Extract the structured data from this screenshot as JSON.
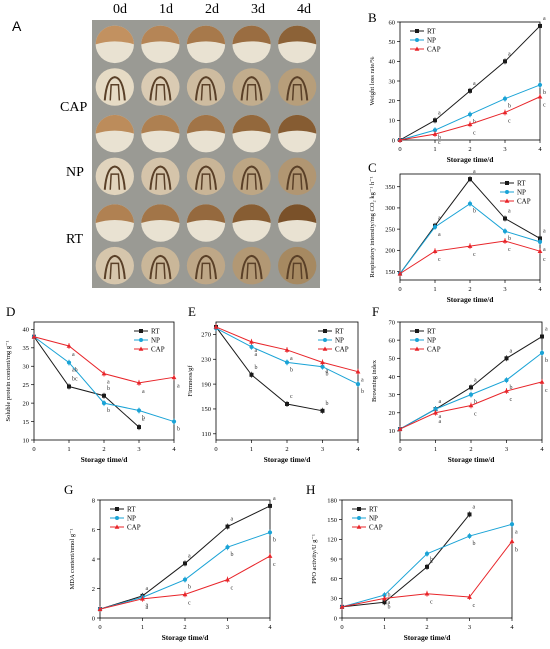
{
  "panel_a": {
    "letter": "A",
    "days": [
      "0d",
      "1d",
      "2d",
      "3d",
      "4d"
    ],
    "rows": [
      "CAP",
      "NP",
      "RT"
    ]
  },
  "colors": {
    "RT": "#1a1a1a",
    "NP": "#1aa3d6",
    "CAP": "#e8252a"
  },
  "chart_data": [
    {
      "id": "B",
      "type": "line",
      "letter": "B",
      "xlabel": "Storage time/d",
      "ylabel": "Weight loss rate/%",
      "x": [
        0,
        1,
        2,
        3,
        4
      ],
      "xlim": [
        0,
        4
      ],
      "ylim": [
        0,
        60
      ],
      "yticks": [
        0,
        10,
        20,
        30,
        40,
        50,
        60
      ],
      "legend_pos": "top-left",
      "series": [
        {
          "name": "RT",
          "color": "#1a1a1a",
          "marker": "square",
          "values": [
            0,
            10,
            25,
            40,
            58
          ],
          "labels": [
            "",
            "a",
            "a",
            "a",
            "a"
          ]
        },
        {
          "name": "NP",
          "color": "#1aa3d6",
          "marker": "circle",
          "values": [
            0,
            5,
            13,
            21,
            28
          ],
          "labels": [
            "",
            "b",
            "b",
            "b",
            "b"
          ]
        },
        {
          "name": "CAP",
          "color": "#e8252a",
          "marker": "triangle",
          "values": [
            0,
            3,
            8,
            14,
            22
          ],
          "labels": [
            "",
            "c",
            "c",
            "c",
            "c"
          ]
        }
      ]
    },
    {
      "id": "C",
      "type": "line",
      "letter": "C",
      "xlabel": "Storage time/d",
      "ylabel": "Respiratory intensity/mg CO₂ kg⁻¹ h⁻¹",
      "x": [
        0,
        1,
        2,
        3,
        4
      ],
      "xlim": [
        0,
        4
      ],
      "ylim": [
        130,
        380
      ],
      "yticks": [
        150,
        200,
        250,
        300,
        350
      ],
      "legend_pos": "top-right",
      "series": [
        {
          "name": "RT",
          "color": "#1a1a1a",
          "marker": "square",
          "values": [
            145,
            258,
            368,
            275,
            228
          ],
          "labels": [
            "",
            "a",
            "a",
            "a",
            "a"
          ]
        },
        {
          "name": "NP",
          "color": "#1aa3d6",
          "marker": "circle",
          "values": [
            145,
            255,
            310,
            245,
            220
          ],
          "labels": [
            "",
            "a",
            "b",
            "b",
            "a"
          ]
        },
        {
          "name": "CAP",
          "color": "#e8252a",
          "marker": "triangle",
          "values": [
            145,
            198,
            210,
            222,
            198
          ],
          "labels": [
            "",
            "c",
            "c",
            "c",
            "c"
          ]
        }
      ]
    },
    {
      "id": "D",
      "type": "line",
      "letter": "D",
      "xlabel": "Storage time/d",
      "ylabel": "Soluble protein content/mg g⁻¹",
      "x": [
        0,
        1,
        2,
        3,
        4
      ],
      "xlim": [
        0,
        4
      ],
      "ylim": [
        10,
        42
      ],
      "yticks": [
        10,
        15,
        20,
        25,
        30,
        35,
        40
      ],
      "legend_pos": "top-right",
      "series": [
        {
          "name": "RT",
          "color": "#1a1a1a",
          "marker": "square",
          "values": [
            38,
            24.5,
            22,
            13.5,
            null
          ],
          "labels": [
            "",
            "bc",
            "b",
            "c",
            ""
          ]
        },
        {
          "name": "NP",
          "color": "#1aa3d6",
          "marker": "circle",
          "values": [
            38,
            31,
            20,
            18,
            15
          ],
          "labels": [
            "",
            "ab",
            "b",
            "b",
            "b"
          ]
        },
        {
          "name": "CAP",
          "color": "#e8252a",
          "marker": "triangle",
          "values": [
            38,
            35.5,
            28,
            25.5,
            27
          ],
          "labels": [
            "",
            "a",
            "a",
            "a",
            "a"
          ]
        }
      ]
    },
    {
      "id": "E",
      "type": "line",
      "letter": "E",
      "xlabel": "Storage time/d",
      "ylabel": "Firmness/gf",
      "x": [
        0,
        1,
        2,
        3,
        4
      ],
      "xlim": [
        0,
        4
      ],
      "ylim": [
        100,
        290
      ],
      "yticks": [
        110,
        150,
        190,
        230,
        270
      ],
      "legend_pos": "top-right",
      "series": [
        {
          "name": "RT",
          "color": "#1a1a1a",
          "marker": "square",
          "values": [
            282,
            205,
            158,
            147,
            null
          ],
          "labels": [
            "",
            "b",
            "c",
            "b",
            ""
          ]
        },
        {
          "name": "NP",
          "color": "#1aa3d6",
          "marker": "circle",
          "values": [
            280,
            250,
            225,
            218,
            190
          ],
          "labels": [
            "",
            "a",
            "b",
            "b",
            "b"
          ]
        },
        {
          "name": "CAP",
          "color": "#e8252a",
          "marker": "triangle",
          "values": [
            282,
            258,
            245,
            225,
            210
          ],
          "labels": [
            "",
            "a",
            "a",
            "a",
            "a"
          ]
        }
      ]
    },
    {
      "id": "F",
      "type": "line",
      "letter": "F",
      "xlabel": "Storage time/d",
      "ylabel": "Browning index",
      "x": [
        0,
        1,
        2,
        3,
        4
      ],
      "xlim": [
        0,
        4
      ],
      "ylim": [
        5,
        70
      ],
      "yticks": [
        10,
        20,
        30,
        40,
        50,
        60,
        70
      ],
      "legend_pos": "top-left",
      "series": [
        {
          "name": "RT",
          "color": "#1a1a1a",
          "marker": "square",
          "values": [
            11,
            22,
            34,
            50,
            62
          ],
          "labels": [
            "",
            "a",
            "a",
            "a",
            "a"
          ]
        },
        {
          "name": "NP",
          "color": "#1aa3d6",
          "marker": "circle",
          "values": [
            11,
            22,
            30,
            38,
            53
          ],
          "labels": [
            "",
            "a",
            "b",
            "b",
            "b"
          ]
        },
        {
          "name": "CAP",
          "color": "#e8252a",
          "marker": "triangle",
          "values": [
            11,
            20,
            24,
            32,
            37
          ],
          "labels": [
            "",
            "a",
            "c",
            "c",
            "c"
          ]
        }
      ]
    },
    {
      "id": "G",
      "type": "line",
      "letter": "G",
      "xlabel": "Storage time/d",
      "ylabel": "MDA content/nmol g⁻¹",
      "x": [
        0,
        1,
        2,
        3,
        4
      ],
      "xlim": [
        0,
        4
      ],
      "ylim": [
        0,
        8
      ],
      "yticks": [
        0,
        2,
        4,
        6,
        8
      ],
      "legend_pos": "top-left",
      "series": [
        {
          "name": "RT",
          "color": "#1a1a1a",
          "marker": "square",
          "values": [
            0.6,
            1.5,
            3.7,
            6.2,
            7.6
          ],
          "labels": [
            "",
            "a",
            "a",
            "a",
            "a"
          ]
        },
        {
          "name": "NP",
          "color": "#1aa3d6",
          "marker": "circle",
          "values": [
            0.6,
            1.4,
            2.6,
            4.8,
            5.8
          ],
          "labels": [
            "",
            "a",
            "b",
            "b",
            "b"
          ]
        },
        {
          "name": "CAP",
          "color": "#e8252a",
          "marker": "triangle",
          "values": [
            0.6,
            1.3,
            1.6,
            2.6,
            4.2
          ],
          "labels": [
            "",
            "a",
            "c",
            "c",
            "c"
          ]
        }
      ]
    },
    {
      "id": "H",
      "type": "line",
      "letter": "H",
      "xlabel": "Storage time/d",
      "ylabel": "PPO activity/U g⁻¹",
      "x": [
        0,
        1,
        2,
        3,
        4
      ],
      "xlim": [
        0,
        4
      ],
      "ylim": [
        0,
        180
      ],
      "yticks": [
        0,
        30,
        60,
        90,
        120,
        150,
        180
      ],
      "legend_pos": "top-left",
      "series": [
        {
          "name": "RT",
          "color": "#1a1a1a",
          "marker": "square",
          "values": [
            17,
            24,
            78,
            158,
            null
          ],
          "labels": [
            "",
            "b",
            "b",
            "a",
            ""
          ]
        },
        {
          "name": "NP",
          "color": "#1aa3d6",
          "marker": "circle",
          "values": [
            17,
            35,
            98,
            125,
            143
          ],
          "labels": [
            "",
            "a",
            "a",
            "b",
            "a"
          ]
        },
        {
          "name": "CAP",
          "color": "#e8252a",
          "marker": "triangle",
          "values": [
            17,
            30,
            37,
            32,
            117
          ],
          "labels": [
            "",
            "b",
            "c",
            "c",
            "b"
          ]
        }
      ]
    }
  ]
}
